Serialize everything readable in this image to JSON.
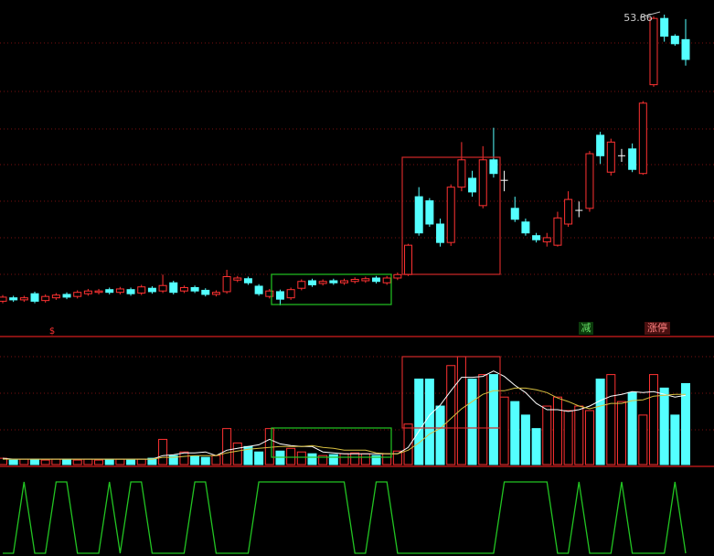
{
  "chart_data": [
    {
      "type": "candlestick",
      "open": [
        11.9,
        12.4,
        12.1,
        13.0,
        12.0,
        12.4,
        12.9,
        12.6,
        13.0,
        13.2,
        13.6,
        13.2,
        13.6,
        13.1,
        13.8,
        13.4,
        14.6,
        13.4,
        13.9,
        13.5,
        12.9,
        13.3,
        15.0,
        15.2,
        14.1,
        12.6,
        13.3,
        12.4,
        13.8,
        14.9,
        14.5,
        14.9,
        14.6,
        14.8,
        14.9,
        15.3,
        14.6,
        15.3,
        15.8,
        27.2,
        26.6,
        23.2,
        20.5,
        28.6,
        29.9,
        25.9,
        32.6,
        29.6,
        25.5,
        23.5,
        21.5,
        20.6,
        20.1,
        23.2,
        25.2,
        25.5,
        36.2,
        30.8,
        33.2,
        34.2,
        30.6,
        43.6,
        53.3,
        50.7,
        50.2
      ],
      "high": [
        12.8,
        12.7,
        12.7,
        13.3,
        12.9,
        13.1,
        13.2,
        13.5,
        13.7,
        13.7,
        13.9,
        14.0,
        13.9,
        14.3,
        14.1,
        15.8,
        14.9,
        14.2,
        14.2,
        13.8,
        13.5,
        16.5,
        15.6,
        15.5,
        14.4,
        13.7,
        13.6,
        13.9,
        15.1,
        15.2,
        15.1,
        15.2,
        15.2,
        15.4,
        15.5,
        15.6,
        15.6,
        16.1,
        20.3,
        28.6,
        27.0,
        24.0,
        29.0,
        35.2,
        31.0,
        34.6,
        37.3,
        31.0,
        27.2,
        24.0,
        21.9,
        21.9,
        25.0,
        28.0,
        26.5,
        33.9,
        36.7,
        35.7,
        34.2,
        35.0,
        41.2,
        53.6,
        53.86,
        51.0,
        53.2
      ],
      "low": [
        11.6,
        11.8,
        11.8,
        11.6,
        11.7,
        12.1,
        12.2,
        12.3,
        12.7,
        12.9,
        12.9,
        12.9,
        12.7,
        12.8,
        13.0,
        13.1,
        12.9,
        13.1,
        13.1,
        12.6,
        12.6,
        13.0,
        14.7,
        14.3,
        12.7,
        12.3,
        11.3,
        12.1,
        13.5,
        14.0,
        14.2,
        14.3,
        14.3,
        14.5,
        14.6,
        14.5,
        14.3,
        15.0,
        15.6,
        21.5,
        22.8,
        19.9,
        20.0,
        28.0,
        27.2,
        25.5,
        30.0,
        28.0,
        23.5,
        21.5,
        20.5,
        19.9,
        19.9,
        22.8,
        24.2,
        25.0,
        32.0,
        30.3,
        32.3,
        30.8,
        30.4,
        43.3,
        49.9,
        49.3,
        46.4
      ],
      "close": [
        12.5,
        12.1,
        12.4,
        11.9,
        12.6,
        12.8,
        12.5,
        13.2,
        13.4,
        13.4,
        13.2,
        13.7,
        13.0,
        14.0,
        13.3,
        14.2,
        13.2,
        13.9,
        13.4,
        12.9,
        13.2,
        15.5,
        15.3,
        14.6,
        13.0,
        13.4,
        12.2,
        13.6,
        14.8,
        14.3,
        14.8,
        14.6,
        14.9,
        15.1,
        15.2,
        14.8,
        15.3,
        15.8,
        20.1,
        21.9,
        23.2,
        20.5,
        28.6,
        32.6,
        27.9,
        32.6,
        30.6,
        29.6,
        23.9,
        21.9,
        20.9,
        21.2,
        24.1,
        26.8,
        25.2,
        33.5,
        33.2,
        35.2,
        33.2,
        31.2,
        40.9,
        53.3,
        50.7,
        49.6,
        47.3
      ],
      "up_color": "#ff3232",
      "down_color": "#54ffff",
      "flat_color": "#ffffff",
      "ylim": [
        7,
        56
      ],
      "annotations": [
        "53.86",
        "$",
        "减",
        "涨停"
      ]
    },
    {
      "type": "bar",
      "values": [
        7,
        5,
        6,
        6,
        5,
        6,
        6,
        5,
        6,
        5,
        6,
        6,
        5,
        6,
        7,
        28,
        10,
        14,
        9,
        8,
        10,
        40,
        24,
        20,
        14,
        40,
        15,
        18,
        14,
        12,
        10,
        11,
        12,
        13,
        12,
        10,
        12,
        15,
        45,
        95,
        95,
        65,
        110,
        120,
        95,
        100,
        100,
        75,
        70,
        55,
        40,
        65,
        75,
        60,
        65,
        60,
        95,
        100,
        70,
        80,
        55,
        100,
        85,
        55,
        90
      ],
      "lines": [
        {
          "color": "#ffffff",
          "values": [
            7,
            6,
            6,
            6,
            6,
            6,
            6,
            6,
            6,
            6,
            6,
            6,
            6,
            6,
            6,
            10,
            11,
            13,
            13,
            14,
            10,
            16,
            18,
            20,
            22,
            28,
            23,
            21,
            20,
            20,
            14,
            13,
            12,
            12,
            12,
            12,
            12,
            12,
            19,
            37,
            55,
            66,
            82,
            97,
            97,
            98,
            104,
            98,
            88,
            80,
            68,
            61,
            61,
            59,
            61,
            65,
            71,
            76,
            78,
            81,
            80,
            81,
            78,
            75,
            77
          ]
        },
        {
          "color": "#d8c040",
          "values": [
            6,
            6,
            6,
            6,
            6,
            6,
            6,
            6,
            6,
            6,
            6,
            6,
            6,
            6,
            6,
            8,
            8,
            9,
            10,
            10,
            10,
            13,
            15,
            17,
            18,
            19,
            20,
            20,
            20,
            21,
            19,
            18,
            16,
            16,
            16,
            13,
            12,
            12,
            16,
            24,
            34,
            40,
            51,
            62,
            70,
            78,
            82,
            82,
            85,
            85,
            83,
            80,
            74,
            70,
            65,
            62,
            65,
            68,
            68,
            71,
            72,
            76,
            77,
            78,
            78
          ]
        }
      ],
      "ylim": [
        0,
        125
      ]
    },
    {
      "type": "line",
      "values": [
        0,
        0,
        1,
        0,
        0,
        1,
        1,
        0,
        0,
        0,
        1,
        0,
        1,
        1,
        0,
        0,
        0,
        0,
        1,
        1,
        0,
        0,
        0,
        0,
        1,
        1,
        1,
        1,
        1,
        1,
        1,
        1,
        1,
        0,
        0,
        1,
        1,
        0,
        0,
        0,
        0,
        0,
        0,
        0,
        0,
        0,
        0,
        1,
        1,
        1,
        1,
        1,
        0,
        0,
        1,
        0,
        0,
        0,
        1,
        0,
        0,
        0,
        0,
        1,
        0
      ],
      "color": "#22c422",
      "ylim": [
        0,
        1
      ]
    }
  ]
}
